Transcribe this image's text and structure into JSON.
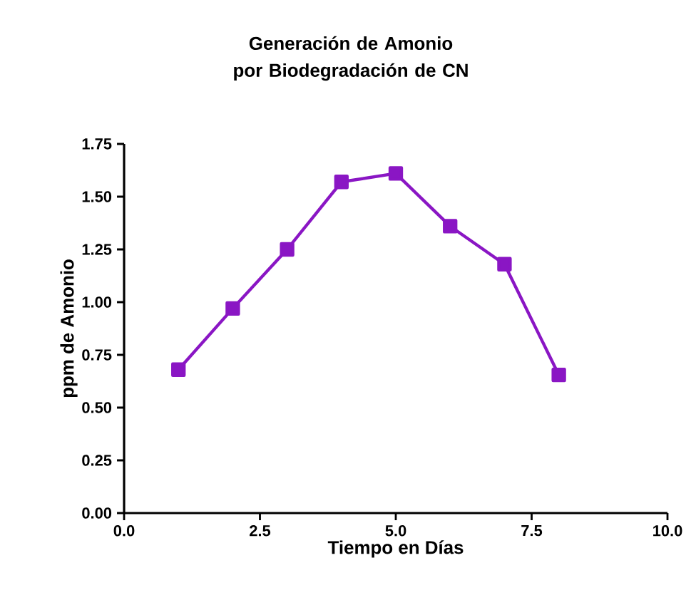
{
  "chart_data": {
    "type": "line",
    "title": "Generación de Amonio por Biodegradación de CN",
    "xlabel": "Tiempo en Días",
    "ylabel": "ppm de Amonio",
    "x": [
      1,
      2,
      3,
      4,
      5,
      6,
      7,
      8
    ],
    "series": [
      {
        "color": "#8a16c4",
        "values": [
          0.68,
          0.97,
          1.25,
          1.57,
          1.61,
          1.36,
          1.18,
          0.655
        ]
      }
    ],
    "xlim": [
      0,
      10
    ],
    "xticks": [
      {
        "value": 0,
        "label": "0.0"
      },
      {
        "value": 2.5,
        "label": "2.5"
      },
      {
        "value": 5,
        "label": "5.0"
      },
      {
        "value": 7.5,
        "label": "7.5"
      },
      {
        "value": 10,
        "label": "10.0"
      }
    ],
    "ylim": [
      0,
      1.75
    ],
    "yticks": [
      {
        "value": 0,
        "label": "0.00"
      },
      {
        "value": 0.25,
        "label": "0.25"
      },
      {
        "value": 0.5,
        "label": "0.50"
      },
      {
        "value": 0.75,
        "label": "0.75"
      },
      {
        "value": 1,
        "label": "1.00"
      },
      {
        "value": 1.25,
        "label": "1.25"
      },
      {
        "value": 1.5,
        "label": "1.50"
      },
      {
        "value": 1.75,
        "label": "1.75"
      }
    ],
    "grid": false,
    "marker": "square",
    "line_style": "solid"
  }
}
